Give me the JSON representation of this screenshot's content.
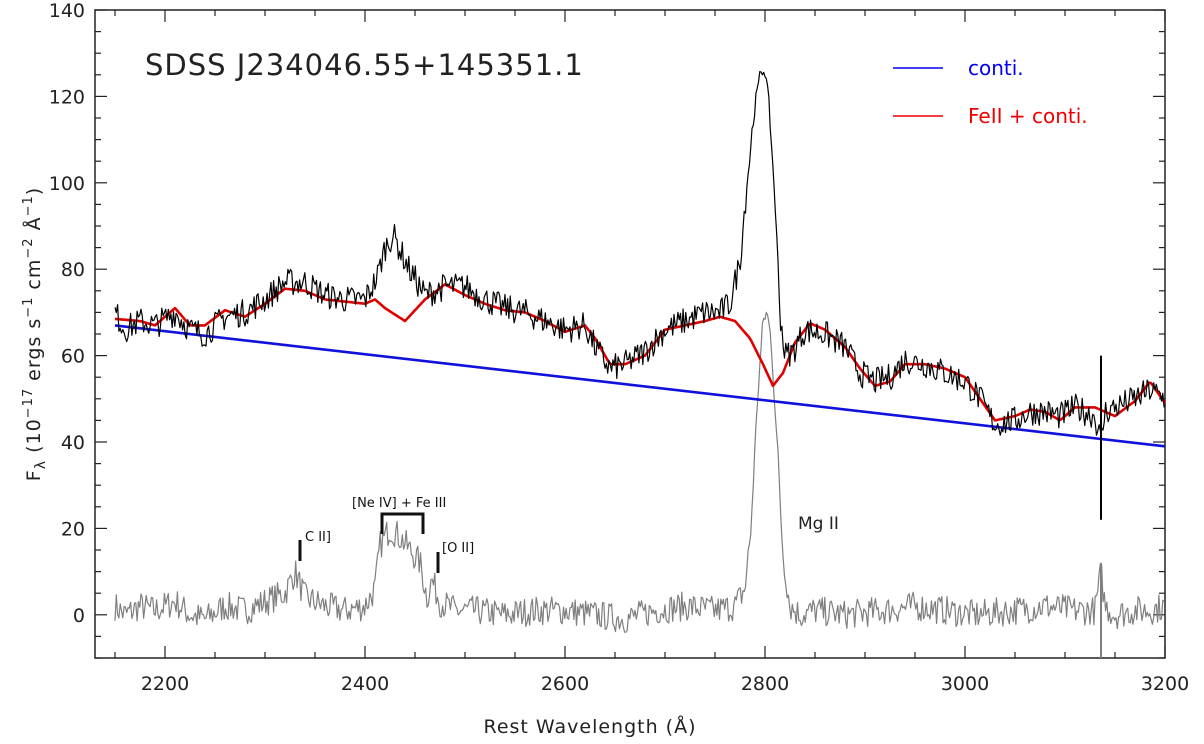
{
  "chart_data": {
    "type": "line",
    "title": "SDSS J234046.55+145351.1",
    "xlabel": "Rest Wavelength  (Å)",
    "ylabel": {
      "symbol": "F",
      "symbol_sub": "λ",
      "open": "(10",
      "exp1": "−17",
      "mid": " ergs s",
      "exp2": "−1",
      "mid2": " cm",
      "exp3": "−2",
      "mid3": " Å",
      "exp4": "−1",
      "close": ")"
    },
    "xlim": [
      2130,
      3200
    ],
    "ylim": [
      -10,
      140
    ],
    "x_ticks": [
      2200,
      2400,
      2600,
      2800,
      3000,
      3200
    ],
    "y_ticks": [
      0,
      20,
      40,
      60,
      80,
      100,
      120,
      140
    ],
    "legend": {
      "position": "top-right",
      "entries": [
        {
          "label": "conti.",
          "color": "#0000ee"
        },
        {
          "label": "FeII + conti.",
          "color": "#ee0000"
        }
      ]
    },
    "series": [
      {
        "name": "conti.",
        "color": "#1111dd",
        "x": [
          2150,
          3200
        ],
        "y": [
          67,
          39
        ]
      },
      {
        "name": "FeII + conti.",
        "color": "#e00000",
        "x": [
          2150,
          2175,
          2190,
          2210,
          2225,
          2240,
          2260,
          2280,
          2300,
          2320,
          2340,
          2360,
          2380,
          2400,
          2410,
          2420,
          2440,
          2460,
          2480,
          2500,
          2520,
          2540,
          2560,
          2580,
          2600,
          2620,
          2630,
          2645,
          2660,
          2680,
          2700,
          2720,
          2740,
          2755,
          2770,
          2785,
          2798,
          2808,
          2818,
          2830,
          2845,
          2860,
          2880,
          2895,
          2910,
          2925,
          2940,
          2960,
          2980,
          3000,
          3015,
          3030,
          3050,
          3065,
          3080,
          3095,
          3110,
          3130,
          3150,
          3170,
          3185,
          3200
        ],
        "y": [
          68.5,
          68,
          67,
          71,
          67,
          67,
          70.5,
          69,
          72,
          75.5,
          75,
          73,
          72.5,
          72,
          73,
          71,
          68,
          73,
          76.5,
          74,
          72,
          70.5,
          70,
          68,
          65.5,
          67,
          64,
          58,
          58,
          60,
          66,
          67,
          68,
          69,
          68,
          64,
          58,
          53,
          56,
          63,
          67.5,
          66,
          62,
          57,
          53,
          54,
          58,
          58,
          57,
          55,
          50,
          45,
          46,
          47.5,
          47,
          45,
          48,
          48,
          46,
          49.5,
          54,
          49
        ]
      },
      {
        "name": "spectrum",
        "color": "#000000",
        "x": [
          2150,
          2160,
          2175,
          2190,
          2210,
          2225,
          2240,
          2260,
          2280,
          2300,
          2320,
          2340,
          2360,
          2380,
          2400,
          2412,
          2420,
          2428,
          2436,
          2444,
          2452,
          2460,
          2480,
          2500,
          2520,
          2540,
          2560,
          2580,
          2600,
          2620,
          2630,
          2645,
          2660,
          2680,
          2700,
          2720,
          2740,
          2755,
          2765,
          2775,
          2782,
          2790,
          2796,
          2800,
          2804,
          2810,
          2815,
          2820,
          2828,
          2840,
          2860,
          2880,
          2895,
          2910,
          2925,
          2940,
          2960,
          2980,
          3000,
          3015,
          3030,
          3050,
          3065,
          3080,
          3095,
          3110,
          3130,
          3136,
          3140,
          3150,
          3170,
          3185,
          3200
        ],
        "y": [
          70,
          66,
          68,
          67,
          70,
          66,
          65,
          69,
          70,
          73,
          77,
          77,
          74,
          73,
          73,
          78,
          85,
          88,
          84,
          80,
          77,
          74,
          76,
          76,
          73,
          71,
          70,
          68,
          66,
          67,
          62,
          57,
          58,
          61,
          66,
          68,
          70,
          70,
          72,
          82,
          100,
          118,
          126,
          126,
          118,
          96,
          70,
          60,
          61,
          66,
          65,
          62,
          56,
          54,
          55,
          59,
          58,
          56,
          54,
          50,
          44,
          45,
          47,
          47,
          46,
          48,
          46,
          40,
          47,
          48,
          50,
          52,
          50
        ]
      },
      {
        "name": "residual",
        "color": "#7f7f7f",
        "x": [
          2150,
          2160,
          2175,
          2190,
          2210,
          2225,
          2240,
          2260,
          2280,
          2300,
          2320,
          2330,
          2340,
          2360,
          2380,
          2400,
          2410,
          2415,
          2425,
          2435,
          2445,
          2455,
          2462,
          2467,
          2475,
          2490,
          2510,
          2540,
          2570,
          2600,
          2630,
          2660,
          2690,
          2720,
          2750,
          2770,
          2780,
          2786,
          2792,
          2798,
          2802,
          2806,
          2812,
          2818,
          2825,
          2835,
          2850,
          2880,
          2920,
          2950,
          2980,
          3010,
          3050,
          3080,
          3110,
          3130,
          3136,
          3140,
          3150,
          3170,
          3185,
          3200
        ],
        "y": [
          2,
          0,
          2,
          1,
          3,
          0,
          -1,
          2,
          1,
          3,
          5,
          10,
          4,
          2,
          1,
          2,
          6,
          16,
          20,
          18,
          15,
          12,
          4,
          8,
          3,
          1,
          1,
          0,
          1,
          1,
          0,
          -1,
          1,
          2,
          1,
          2,
          6,
          20,
          48,
          68,
          70,
          64,
          40,
          14,
          2,
          0,
          1,
          0,
          1,
          2,
          1,
          0,
          1,
          2,
          1,
          1,
          10,
          2,
          0,
          1,
          1,
          2
        ]
      }
    ],
    "annotations": [
      {
        "text": "C II]",
        "x": 2330,
        "y": 17
      },
      {
        "text": "[Ne IV] + Fe III",
        "x": 2430,
        "y": 25
      },
      {
        "text": "[O II]",
        "x": 2470,
        "y": 12
      },
      {
        "text": "Mg II",
        "x": 2860,
        "y": 20
      }
    ],
    "markers": [
      {
        "x": 3136,
        "y_top": 60,
        "y_bottom": 22
      }
    ]
  }
}
